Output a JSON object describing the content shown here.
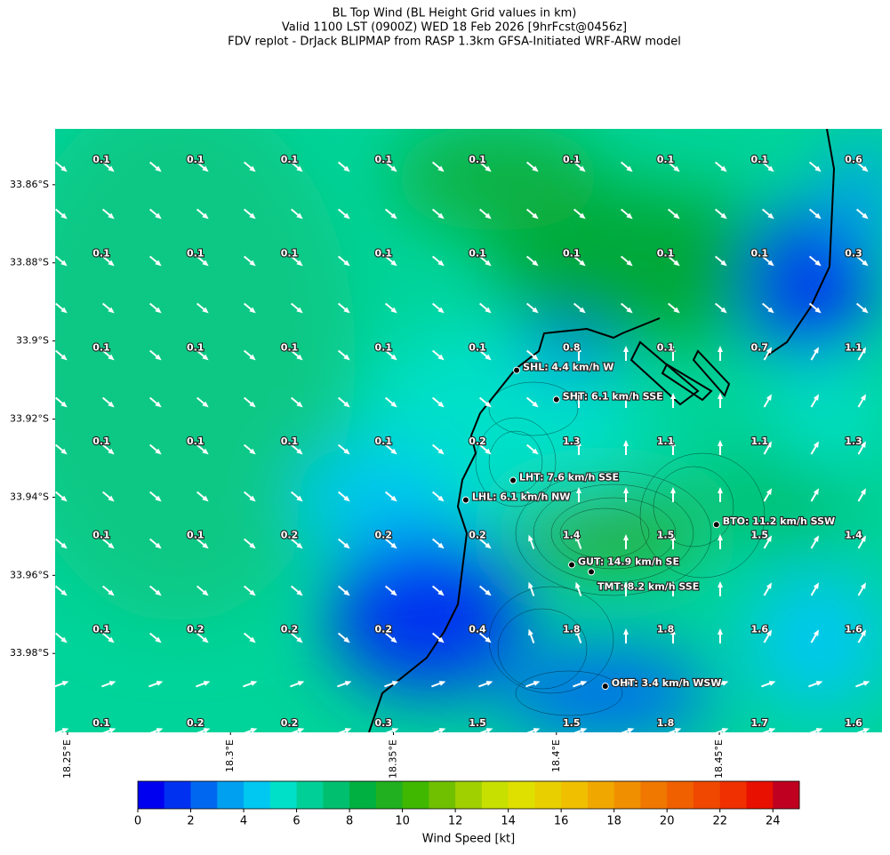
{
  "title_lines": [
    "BL Top Wind (BL Height Grid values in km)",
    "Valid 1100 LST (0900Z) WED 18 Feb 2026 [9hrFcst@0456z]",
    "FDV replot - DrJack BLIPMAP from RASP 1.3km GFSA-Initiated WRF-ARW model"
  ],
  "map": {
    "latlim": [
      -34.0002,
      -33.8457
    ],
    "lonlim": [
      18.2462,
      18.4999
    ],
    "lat_ticks": [
      {
        "value": -33.86,
        "label": "33.86°S"
      },
      {
        "value": -33.88,
        "label": "33.88°S"
      },
      {
        "value": -33.9,
        "label": "33.9°S"
      },
      {
        "value": -33.92,
        "label": "33.92°S"
      },
      {
        "value": -33.94,
        "label": "33.94°S"
      },
      {
        "value": -33.96,
        "label": "33.96°S"
      },
      {
        "value": -33.98,
        "label": "33.98°S"
      }
    ],
    "lon_ticks": [
      {
        "value": 18.25,
        "label": "18.25°E"
      },
      {
        "value": 18.3,
        "label": "18.3°E"
      },
      {
        "value": 18.35,
        "label": "18.35°E"
      },
      {
        "value": 18.4,
        "label": "18.4°E"
      },
      {
        "value": 18.45,
        "label": "18.45°E"
      }
    ],
    "grid_values": [
      [
        0.1,
        0.1,
        0.1,
        0.1,
        0.1,
        0.1,
        0.1,
        0.1,
        0.6
      ],
      [
        0.1,
        0.1,
        0.1,
        0.1,
        0.1,
        0.1,
        0.1,
        0.1,
        0.3
      ],
      [
        0.1,
        0.1,
        0.1,
        0.1,
        0.1,
        0.8,
        0.1,
        0.7,
        1.1
      ],
      [
        0.1,
        0.1,
        0.1,
        0.1,
        0.2,
        1.3,
        1.1,
        1.1,
        1.3
      ],
      [
        0.1,
        0.1,
        0.2,
        0.2,
        0.2,
        1.4,
        1.5,
        1.5,
        1.4
      ],
      [
        0.1,
        0.2,
        0.2,
        0.2,
        0.4,
        1.8,
        1.8,
        1.6,
        1.6
      ],
      [
        0.1,
        0.2,
        0.2,
        0.3,
        1.5,
        1.5,
        1.8,
        1.7,
        1.6
      ]
    ],
    "stations": [
      {
        "label": "SHL: 4.4 km/h W",
        "lon": 18.3878,
        "lat": -33.9075
      },
      {
        "label": "SHT: 6.1 km/h SSE",
        "lon": 18.4,
        "lat": -33.915
      },
      {
        "label": "LHT: 7.6 km/h SSE",
        "lon": 18.3867,
        "lat": -33.9357
      },
      {
        "label": "LHL: 6.1 km/h NW",
        "lon": 18.3722,
        "lat": -33.9407
      },
      {
        "label": "BTO: 11.2 km/h SSW",
        "lon": 18.4491,
        "lat": -33.947
      },
      {
        "label": "GUT: 14.9 km/h SE",
        "lon": 18.4047,
        "lat": -33.9573
      },
      {
        "label": "TMT: 8.2 km/h SSE",
        "lon": 18.4107,
        "lat": -33.9591
      },
      {
        "label": "OHT: 3.4 km/h WSW",
        "lon": 18.415,
        "lat": -33.9884
      }
    ]
  },
  "colorbar": {
    "label": "Wind Speed [kt]",
    "lim": [
      0,
      25
    ],
    "ticks": [
      0,
      2,
      4,
      6,
      8,
      10,
      12,
      14,
      16,
      18,
      20,
      22,
      24
    ],
    "colors": [
      "#0000f0",
      "#0030f0",
      "#0068f0",
      "#00a0f0",
      "#00c8f0",
      "#00e0c8",
      "#00d098",
      "#00c070",
      "#00b040",
      "#20b020",
      "#40b800",
      "#70c000",
      "#a0d000",
      "#c8e000",
      "#e0e000",
      "#e8d000",
      "#f0c000",
      "#f0a800",
      "#f09000",
      "#f07800",
      "#f06000",
      "#f04800",
      "#f03000",
      "#e81000",
      "#c00020"
    ]
  }
}
